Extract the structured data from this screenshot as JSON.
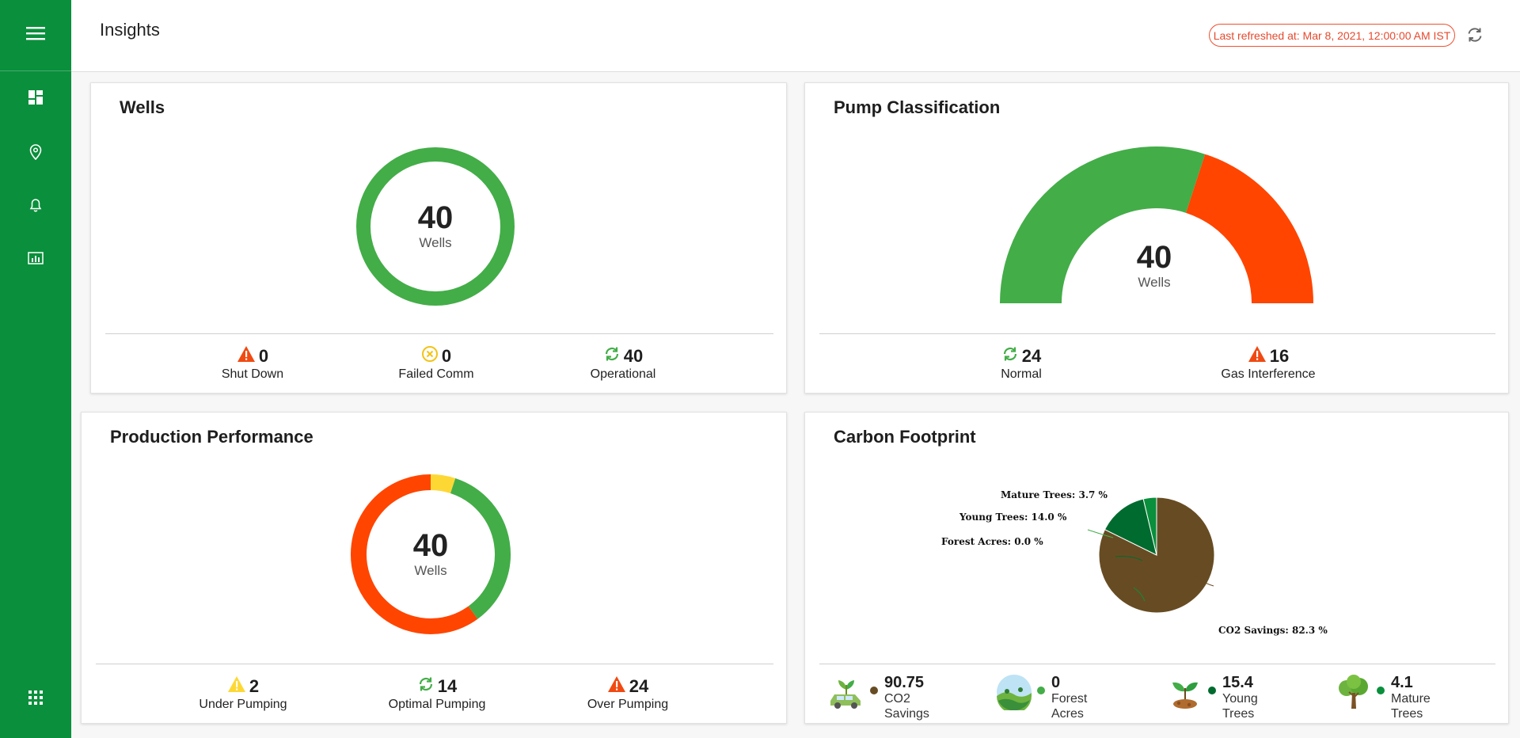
{
  "header": {
    "title": "Insights",
    "last_refreshed": "Last refreshed at: Mar 8, 2021, 12:00:00 AM IST"
  },
  "sidebar": {
    "icons": [
      "menu-icon",
      "dashboard-icon",
      "location-pin-icon",
      "bell-icon",
      "analytics-icon",
      "apps-grid-icon"
    ]
  },
  "colors": {
    "brand": "#0a8f3c",
    "green": "#43ad48",
    "red": "#ff4500",
    "yellow": "#fdd835",
    "brown": "#674c23",
    "dark_green": "#006b2e"
  },
  "wells": {
    "title": "Wells",
    "total": "40",
    "total_label": "Wells",
    "stats": [
      {
        "value": "0",
        "label": "Shut Down",
        "icon": "warning-icon"
      },
      {
        "value": "0",
        "label": "Failed Comm",
        "icon": "failed-comm-icon"
      },
      {
        "value": "40",
        "label": "Operational",
        "icon": "sync-icon"
      }
    ]
  },
  "pump": {
    "title": "Pump Classification",
    "total": "40",
    "total_label": "Wells",
    "stats": [
      {
        "value": "24",
        "label": "Normal",
        "icon": "sync-icon"
      },
      {
        "value": "16",
        "label": "Gas Interference",
        "icon": "warning-icon"
      }
    ]
  },
  "production": {
    "title": "Production Performance",
    "total": "40",
    "total_label": "Wells",
    "stats": [
      {
        "value": "2",
        "label": "Under Pumping",
        "icon": "warning-yellow-icon"
      },
      {
        "value": "14",
        "label": "Optimal Pumping",
        "icon": "sync-icon"
      },
      {
        "value": "24",
        "label": "Over Pumping",
        "icon": "warning-icon"
      }
    ]
  },
  "carbon": {
    "title": "Carbon Footprint",
    "items": [
      {
        "value": "90.75",
        "label": "CO2 Savings",
        "icon": "car-plant-icon"
      },
      {
        "value": "0",
        "label": "Forest Acres",
        "icon": "forest-icon"
      },
      {
        "value": "15.4",
        "label": "Young Trees",
        "icon": "sapling-icon"
      },
      {
        "value": "4.1",
        "label": "Mature Trees",
        "icon": "tree-icon"
      }
    ]
  },
  "chart_data": [
    {
      "type": "pie",
      "name": "wells-donut",
      "slices": [
        {
          "label": "Operational",
          "value": 40
        }
      ]
    },
    {
      "type": "pie",
      "name": "pump-gauge",
      "slices": [
        {
          "label": "Normal",
          "value": 24
        },
        {
          "label": "Gas Interference",
          "value": 16
        }
      ]
    },
    {
      "type": "pie",
      "name": "production-donut",
      "slices": [
        {
          "label": "Under Pumping",
          "value": 2
        },
        {
          "label": "Optimal Pumping",
          "value": 14
        },
        {
          "label": "Over Pumping",
          "value": 24
        }
      ]
    },
    {
      "type": "pie",
      "name": "carbon-pie",
      "slices": [
        {
          "label": "CO2 Savings",
          "value": 82.3,
          "text": "CO2 Savings: 82.3 %"
        },
        {
          "label": "Forest Acres",
          "value": 0.0,
          "text": "Forest Acres: 0.0 %"
        },
        {
          "label": "Young Trees",
          "value": 14.0,
          "text": "Young Trees: 14.0 %"
        },
        {
          "label": "Mature Trees",
          "value": 3.7,
          "text": "Mature Trees: 3.7 %"
        }
      ]
    }
  ]
}
